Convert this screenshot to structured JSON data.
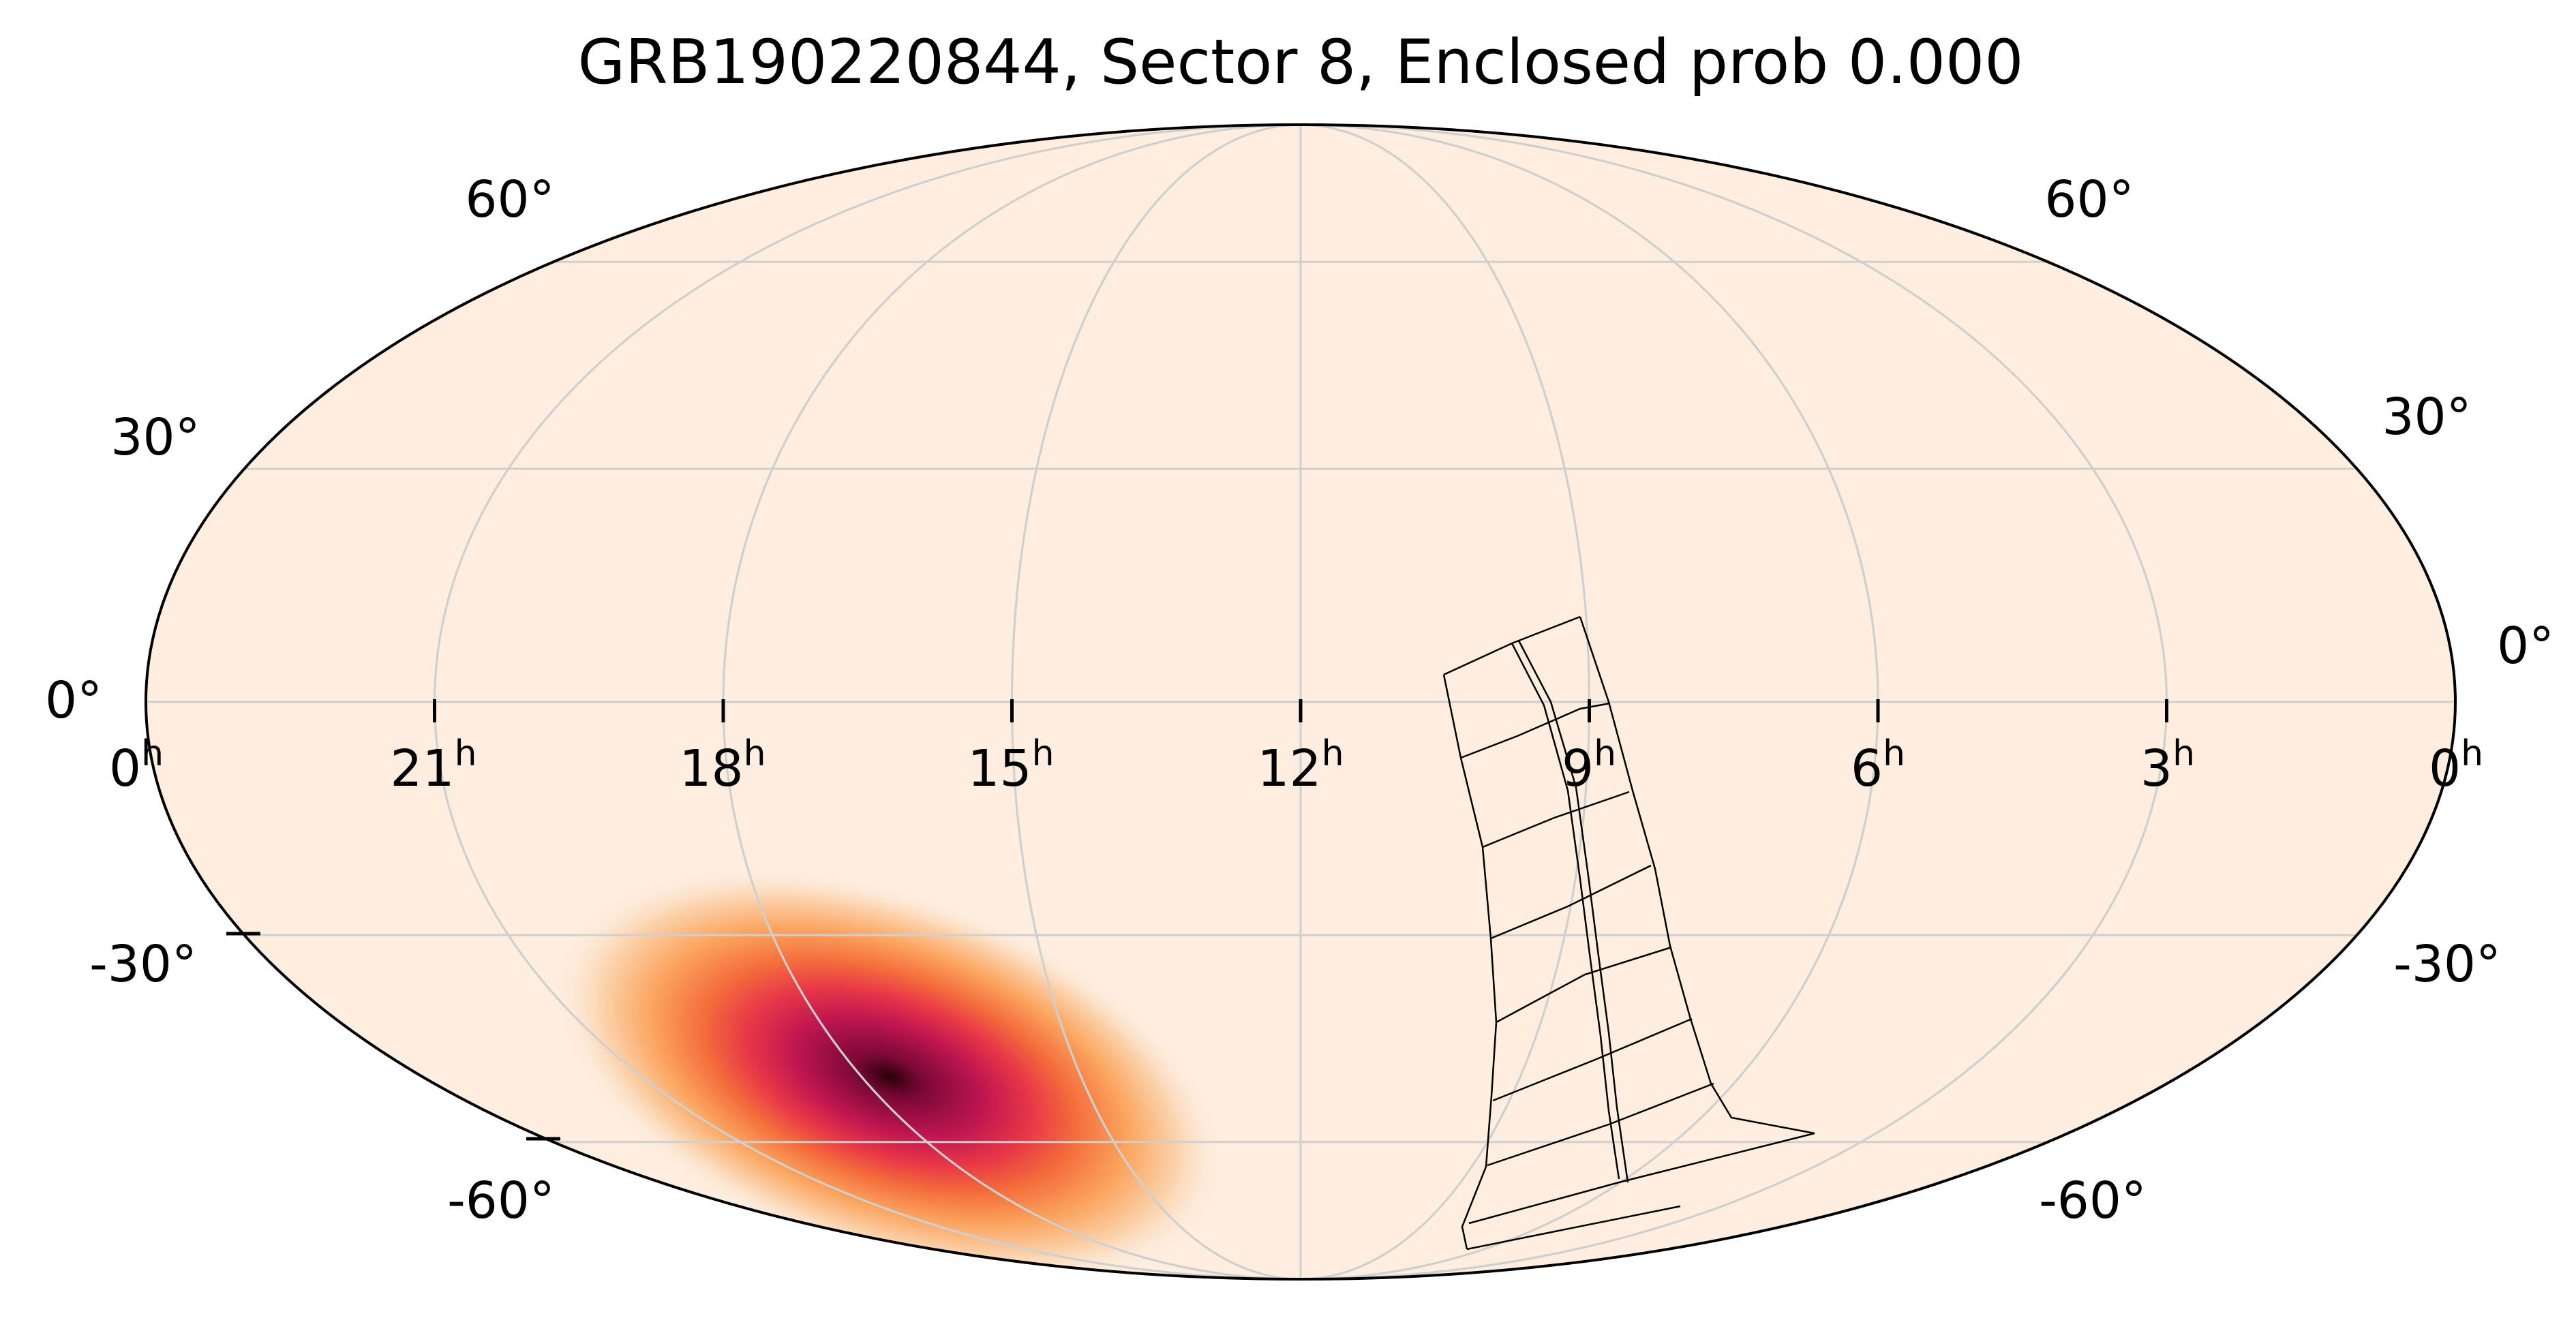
{
  "title": "GRB190220844, Sector 8, Enclosed prob 0.000",
  "colors": {
    "background": "#fdeee0",
    "outline": "#000000",
    "grid": "#cfcfcf",
    "footprint": "#000000",
    "heat": [
      "#fdeee0",
      "#fbd3ad",
      "#fba45e",
      "#f46d3b",
      "#e83747",
      "#c01650",
      "#7a0836",
      "#2a0008"
    ]
  },
  "ra_labels": [
    "0",
    "21",
    "18",
    "15",
    "12",
    "9",
    "6",
    "3",
    "0"
  ],
  "ra_superscript": "h",
  "dec_labels_left": [
    "60°",
    "30°",
    "0°",
    "-30°",
    "-60°"
  ],
  "dec_labels_right": [
    "60°",
    "30°",
    "0°",
    "-30°",
    "-60°"
  ],
  "localization": {
    "peak_ra_hours": 16.5,
    "peak_dec_deg": -47,
    "description_visible": false
  },
  "footprint": {
    "cameras": 4,
    "ccds_per_camera": 4
  }
}
